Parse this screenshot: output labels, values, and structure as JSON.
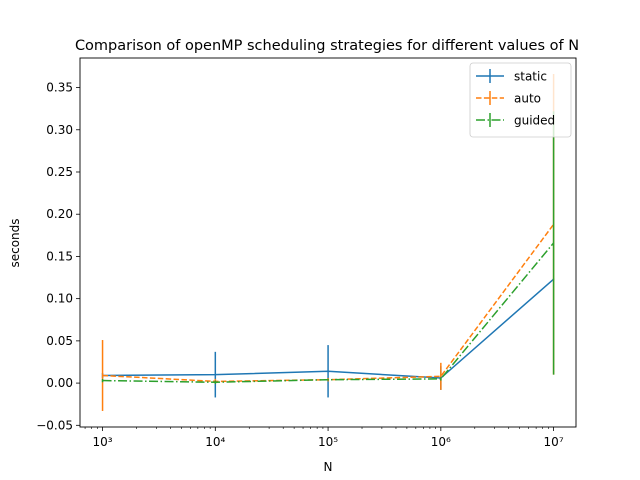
{
  "chart_data": {
    "type": "line",
    "title": "Comparison of openMP scheduling strategies for different values of N",
    "xlabel": "N",
    "ylabel": "seconds",
    "xscale": "log",
    "xlim": [
      631,
      15800000
    ],
    "ylim": [
      -0.052,
      0.385
    ],
    "x": [
      1000,
      10000,
      100000,
      1000000,
      10000000
    ],
    "x_tick_labels": [
      "10³",
      "10⁴",
      "10⁵",
      "10⁶",
      "10⁷"
    ],
    "y_ticks": [
      -0.05,
      0,
      0.05,
      0.1,
      0.15,
      0.2,
      0.25,
      0.3,
      0.35
    ],
    "y_tick_labels": [
      "−0.05",
      "0.00",
      "0.05",
      "0.10",
      "0.15",
      "0.20",
      "0.25",
      "0.30",
      "0.35"
    ],
    "grid": false,
    "legend_position": "top-right",
    "series": [
      {
        "name": "static",
        "style": "solid",
        "color": "#1f77b4",
        "values": [
          0.009,
          0.01,
          0.014,
          0.006,
          0.123
        ],
        "errors": [
          0.003,
          0.027,
          0.031,
          0.014,
          0.001
        ]
      },
      {
        "name": "auto",
        "style": "dashed",
        "color": "#ff7f0e",
        "values": [
          0.009,
          0.002,
          0.004,
          0.008,
          0.188
        ],
        "errors": [
          0.042,
          0.003,
          0.002,
          0.016,
          0.178
        ]
      },
      {
        "name": "guided",
        "style": "dashdot",
        "color": "#2ca02c",
        "values": [
          0.003,
          0.001,
          0.004,
          0.005,
          0.166
        ],
        "errors": [
          0.002,
          0.002,
          0.001,
          0.002,
          0.156
        ]
      }
    ]
  }
}
